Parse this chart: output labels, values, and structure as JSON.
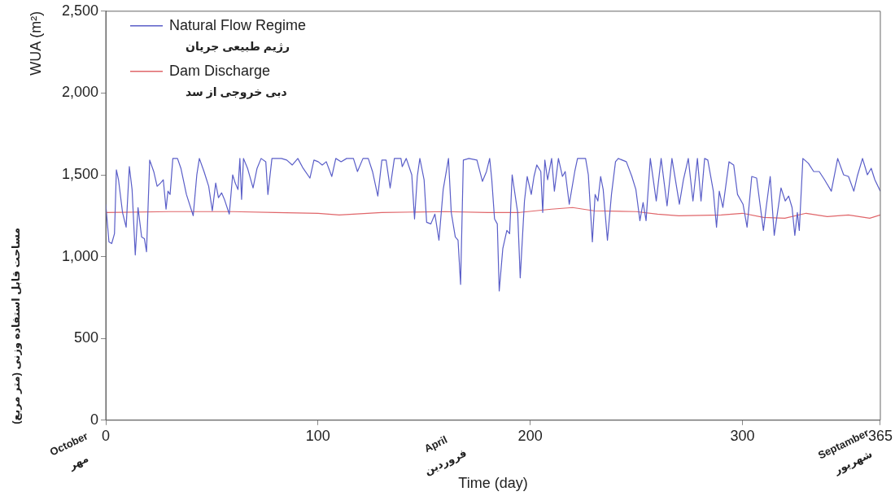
{
  "chart_data": {
    "type": "line",
    "xlabel": "Time (day)",
    "ylabel": "WUA (m²)",
    "xlim": [
      0,
      365
    ],
    "xticks": [
      0,
      100,
      200,
      300,
      365
    ],
    "ylim": [
      0,
      2500
    ],
    "yticks": [
      0,
      {
        "value": 500,
        "label": "500"
      },
      {
        "value": 1000,
        "label": "1,000"
      },
      {
        "value": 1500,
        "label": "1,500"
      },
      {
        "value": 2000,
        "label": "2,000"
      },
      {
        "value": 2500,
        "label": "2,500"
      }
    ],
    "grid": false,
    "legend": "top left",
    "marker": "none",
    "line_style": "solid",
    "series": [
      {
        "name": "Natural Flow Regime\nرژیم طبیعی جریان",
        "color": "#5a5ec8",
        "x": [
          0,
          1.5,
          2.8,
          4.1,
          5.0,
          6.0,
          7.9,
          9.6,
          11.1,
          12.4,
          13.9,
          15.2,
          16.9,
          18.2,
          19.2,
          20.7,
          22.6,
          24.2,
          25.8,
          27.1,
          28.4,
          29.3,
          30.3,
          31.6,
          33.8,
          35.4,
          38.0,
          41.2,
          42.9,
          44.1,
          46.3,
          48.5,
          50.2,
          51.8,
          53.1,
          54.6,
          55.9,
          58.2,
          59.8,
          61.0,
          62.3,
          63.2,
          64.0,
          64.9,
          66.8,
          69.4,
          71.3,
          73.2,
          75.4,
          76.4,
          78.3,
          82.8,
          85.3,
          87.9,
          90.5,
          93.0,
          96.2,
          98.1,
          100.1,
          102.0,
          103.9,
          106.5,
          108.4,
          110.9,
          113.5,
          116.7,
          118.6,
          121.2,
          123.7,
          125.7,
          128.2,
          130.1,
          132.1,
          134.0,
          136.0,
          139.1,
          139.7,
          141.6,
          144.2,
          145.5,
          146.8,
          148.0,
          150.0,
          151.2,
          153.2,
          155.1,
          157.0,
          159.0,
          161.5,
          162.8,
          164.7,
          166.0,
          167.2,
          168.5,
          171.1,
          174.9,
          177.5,
          179.4,
          180.9,
          181.9,
          183.2,
          184.5,
          185.4,
          187.1,
          189.0,
          190.3,
          191.5,
          194.1,
          195.3,
          197.3,
          198.6,
          200.5,
          201.8,
          203.1,
          205.0,
          205.9,
          206.9,
          208.2,
          210.1,
          211.4,
          213.3,
          215.2,
          216.5,
          218.4,
          221.0,
          222.3,
          226.1,
          227.4,
          229.3,
          230.6,
          231.9,
          233.2,
          234.4,
          236.4,
          238.3,
          240.2,
          241.5,
          245.3,
          247.9,
          249.8,
          251.7,
          253.2,
          254.6,
          256.6,
          259.4,
          261.7,
          264.5,
          266.8,
          270.3,
          272.2,
          274.5,
          276.7,
          278.8,
          280.5,
          282.2,
          283.7,
          286.3,
          287.8,
          289.1,
          290.8,
          293.7,
          295.9,
          297.7,
          300.3,
          302.2,
          304.4,
          306.7,
          309.9,
          311.2,
          313.1,
          315.0,
          318.2,
          320.2,
          321.8,
          323.4,
          324.7,
          325.9,
          326.8,
          328.5,
          331.1,
          333.6,
          336.2,
          338.7,
          341.9,
          344.9,
          347.7,
          350.0,
          352.5,
          354.1,
          356.6,
          358.9,
          360.7,
          362.4,
          365.0
        ],
        "values": [
          1320,
          1090,
          1080,
          1140,
          1530,
          1470,
          1270,
          1180,
          1550,
          1410,
          1010,
          1300,
          1120,
          1110,
          1030,
          1590,
          1520,
          1430,
          1450,
          1470,
          1290,
          1400,
          1380,
          1600,
          1600,
          1540,
          1380,
          1250,
          1500,
          1600,
          1520,
          1430,
          1280,
          1450,
          1360,
          1390,
          1350,
          1260,
          1500,
          1450,
          1410,
          1600,
          1350,
          1600,
          1540,
          1420,
          1540,
          1600,
          1580,
          1380,
          1600,
          1600,
          1590,
          1560,
          1600,
          1540,
          1480,
          1590,
          1580,
          1560,
          1580,
          1490,
          1600,
          1580,
          1600,
          1600,
          1520,
          1600,
          1600,
          1520,
          1370,
          1590,
          1590,
          1420,
          1600,
          1600,
          1550,
          1600,
          1500,
          1230,
          1490,
          1600,
          1470,
          1210,
          1200,
          1260,
          1100,
          1410,
          1600,
          1270,
          1120,
          1100,
          830,
          1590,
          1600,
          1590,
          1460,
          1520,
          1600,
          1470,
          1230,
          1200,
          790,
          1050,
          1160,
          1140,
          1500,
          1270,
          870,
          1340,
          1490,
          1380,
          1490,
          1560,
          1520,
          1270,
          1590,
          1470,
          1600,
          1400,
          1600,
          1490,
          1520,
          1320,
          1520,
          1600,
          1600,
          1500,
          1090,
          1380,
          1340,
          1490,
          1410,
          1100,
          1380,
          1580,
          1600,
          1580,
          1490,
          1410,
          1220,
          1330,
          1220,
          1600,
          1340,
          1600,
          1310,
          1600,
          1320,
          1470,
          1600,
          1340,
          1600,
          1340,
          1600,
          1590,
          1400,
          1180,
          1400,
          1300,
          1580,
          1560,
          1380,
          1320,
          1180,
          1490,
          1480,
          1160,
          1300,
          1490,
          1130,
          1420,
          1340,
          1370,
          1300,
          1130,
          1270,
          1160,
          1600,
          1570,
          1520,
          1520,
          1470,
          1400,
          1600,
          1500,
          1490,
          1400,
          1490,
          1600,
          1500,
          1540,
          1470,
          1400
        ]
      },
      {
        "name": "Dam Discharge\nدبی خروجی از سد",
        "color": "#e0666a",
        "x": [
          0,
          30,
          60,
          80,
          100,
          110,
          130,
          160,
          180,
          195,
          210,
          220,
          230,
          250,
          260,
          270,
          290,
          300,
          310,
          320,
          330,
          340,
          350,
          360,
          365
        ],
        "values": [
          1270,
          1275,
          1275,
          1270,
          1265,
          1255,
          1270,
          1275,
          1270,
          1270,
          1290,
          1300,
          1280,
          1275,
          1260,
          1250,
          1255,
          1265,
          1240,
          1235,
          1265,
          1245,
          1255,
          1235,
          1255
        ]
      }
    ],
    "annotations": [
      "October",
      "مهر",
      "April",
      "فروردین",
      "Septamber",
      "شهریور",
      "مساحت قابل استفاده وزنی (متر مربع)"
    ]
  }
}
